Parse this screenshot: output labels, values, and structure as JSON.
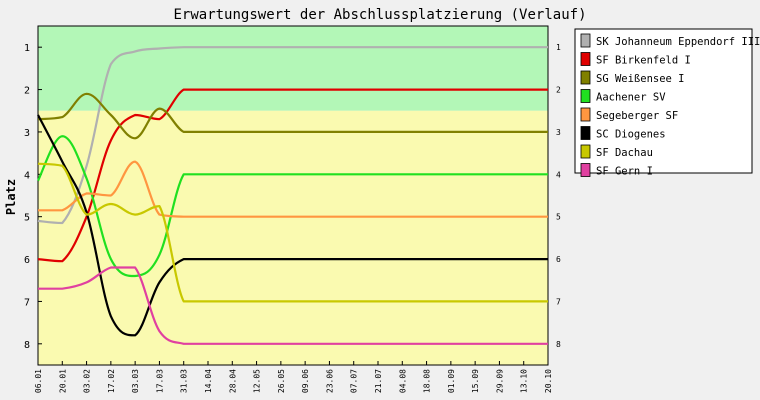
{
  "chart_data": {
    "type": "line",
    "title": "Erwartungswert der Abschlussplatzierung (Verlauf)",
    "ylabel": "Platz",
    "xlabel": "",
    "ylim": [
      0.5,
      8.5
    ],
    "y_reversed": true,
    "yticks": [
      1,
      2,
      3,
      4,
      5,
      6,
      7,
      8
    ],
    "zones": [
      {
        "from": 0.5,
        "to": 2.5,
        "color": "#b3f7b7"
      },
      {
        "from": 2.5,
        "to": 8.5,
        "color": "#fafab0"
      }
    ],
    "categories": [
      "06.01",
      "20.01",
      "03.02",
      "17.02",
      "03.03",
      "17.03",
      "31.03",
      "14.04",
      "28.04",
      "12.05",
      "26.05",
      "09.06",
      "23.06",
      "07.07",
      "21.07",
      "04.08",
      "18.08",
      "01.09",
      "15.09",
      "29.09",
      "13.10",
      "20.10"
    ],
    "series": [
      {
        "name": "SK Johanneum Eppendorf III",
        "color": "#b0b0b0",
        "values": [
          5.1,
          5.15,
          3.8,
          1.4,
          1.1,
          1.03,
          1.0,
          1.0,
          1.0,
          1.0,
          1.0,
          1.0,
          1.0,
          1.0,
          1.0,
          1.0,
          1.0,
          1.0,
          1.0,
          1.0,
          1.0,
          1.0
        ]
      },
      {
        "name": "SF Birkenfeld I",
        "color": "#e00000",
        "values": [
          6.0,
          6.05,
          5.0,
          3.2,
          2.6,
          2.7,
          2.0,
          2.0,
          2.0,
          2.0,
          2.0,
          2.0,
          2.0,
          2.0,
          2.0,
          2.0,
          2.0,
          2.0,
          2.0,
          2.0,
          2.0,
          2.0
        ]
      },
      {
        "name": "SG Weißensee I",
        "color": "#808000",
        "values": [
          2.7,
          2.65,
          2.1,
          2.6,
          3.15,
          2.45,
          3.0,
          3.0,
          3.0,
          3.0,
          3.0,
          3.0,
          3.0,
          3.0,
          3.0,
          3.0,
          3.0,
          3.0,
          3.0,
          3.0,
          3.0,
          3.0
        ]
      },
      {
        "name": "Aachener SV",
        "color": "#20e020",
        "values": [
          4.15,
          3.1,
          4.1,
          6.0,
          6.4,
          5.9,
          4.0,
          4.0,
          4.0,
          4.0,
          4.0,
          4.0,
          4.0,
          4.0,
          4.0,
          4.0,
          4.0,
          4.0,
          4.0,
          4.0,
          4.0,
          4.0
        ]
      },
      {
        "name": "Segeberger SF",
        "color": "#ff9640",
        "values": [
          4.85,
          4.85,
          4.45,
          4.5,
          3.7,
          4.95,
          5.0,
          5.0,
          5.0,
          5.0,
          5.0,
          5.0,
          5.0,
          5.0,
          5.0,
          5.0,
          5.0,
          5.0,
          5.0,
          5.0,
          5.0,
          5.0
        ]
      },
      {
        "name": "SC Diogenes",
        "color": "#000000",
        "values": [
          2.6,
          3.7,
          4.9,
          7.35,
          7.8,
          6.55,
          6.0,
          6.0,
          6.0,
          6.0,
          6.0,
          6.0,
          6.0,
          6.0,
          6.0,
          6.0,
          6.0,
          6.0,
          6.0,
          6.0,
          6.0,
          6.0
        ]
      },
      {
        "name": "SF Dachau",
        "color": "#c8c800",
        "values": [
          3.75,
          3.8,
          4.95,
          4.7,
          4.95,
          4.75,
          7.0,
          7.0,
          7.0,
          7.0,
          7.0,
          7.0,
          7.0,
          7.0,
          7.0,
          7.0,
          7.0,
          7.0,
          7.0,
          7.0,
          7.0,
          7.0
        ]
      },
      {
        "name": "SF Gern I",
        "color": "#e040a0",
        "values": [
          6.7,
          6.7,
          6.55,
          6.2,
          6.2,
          7.7,
          8.0,
          8.0,
          8.0,
          8.0,
          8.0,
          8.0,
          8.0,
          8.0,
          8.0,
          8.0,
          8.0,
          8.0,
          8.0,
          8.0,
          8.0,
          8.0
        ]
      }
    ],
    "legend_position": "right",
    "grid": false
  }
}
